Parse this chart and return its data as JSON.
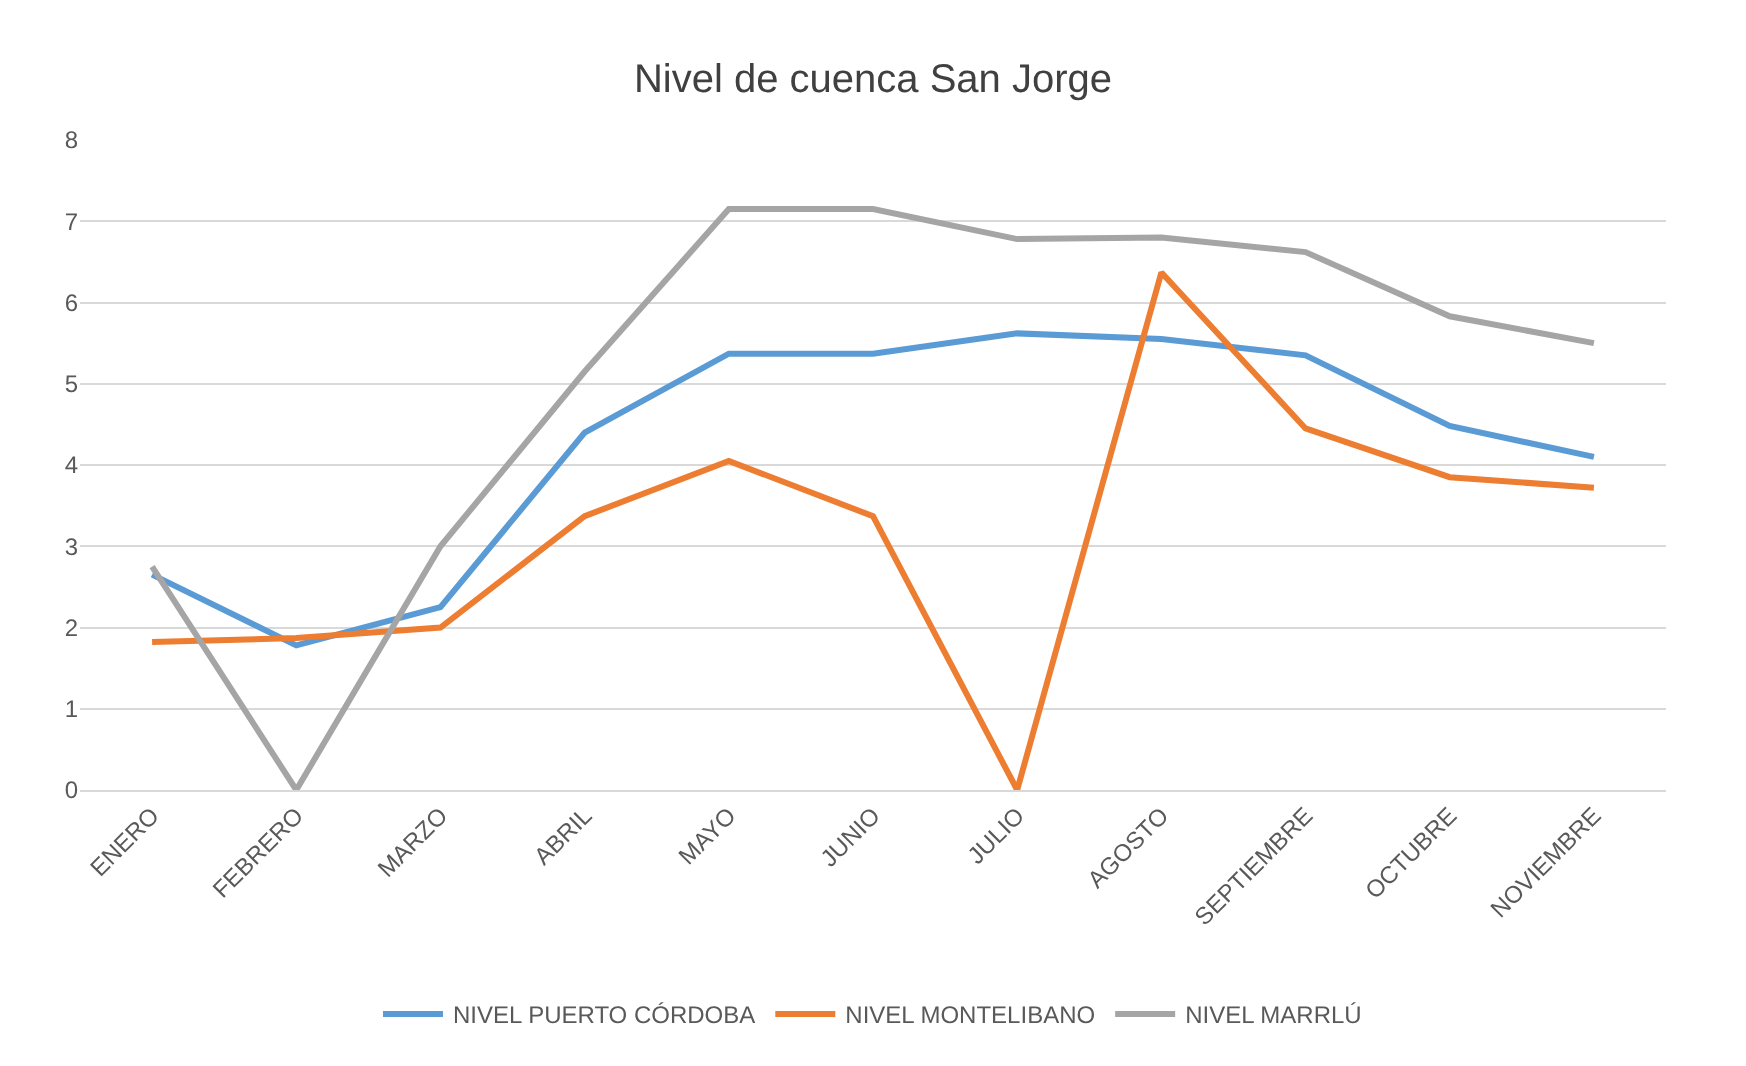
{
  "chart_data": {
    "type": "line",
    "title": "Nivel de cuenca San Jorge",
    "categories": [
      "ENERO",
      "FEBRERO",
      "MARZO",
      "ABRIL",
      "MAYO",
      "JUNIO",
      "JULIO",
      "AGOSTO",
      "SEPTIEMBRE",
      "OCTUBRE",
      "NOVIEMBRE"
    ],
    "series": [
      {
        "name": "NIVEL PUERTO CÓRDOBA",
        "color": "#5b9bd5",
        "values": [
          2.65,
          1.78,
          2.25,
          4.4,
          5.37,
          5.37,
          5.62,
          5.55,
          5.35,
          4.48,
          4.1
        ]
      },
      {
        "name": "NIVEL MONTELIBANO",
        "color": "#ed7d31",
        "values": [
          1.82,
          1.87,
          2.0,
          3.37,
          4.05,
          3.37,
          0,
          6.37,
          4.45,
          3.85,
          3.72
        ]
      },
      {
        "name": "NIVEL MARRLÚ",
        "color": "#a5a5a5",
        "values": [
          2.75,
          0,
          3.0,
          5.15,
          7.15,
          7.15,
          6.78,
          6.8,
          6.62,
          5.83,
          5.5
        ]
      }
    ],
    "ylim": [
      0,
      8
    ],
    "yticks": [
      0,
      1,
      2,
      3,
      4,
      5,
      6,
      7,
      8
    ],
    "grid": "y",
    "legend": "bottom",
    "marker": "none",
    "line_style": "solid"
  }
}
